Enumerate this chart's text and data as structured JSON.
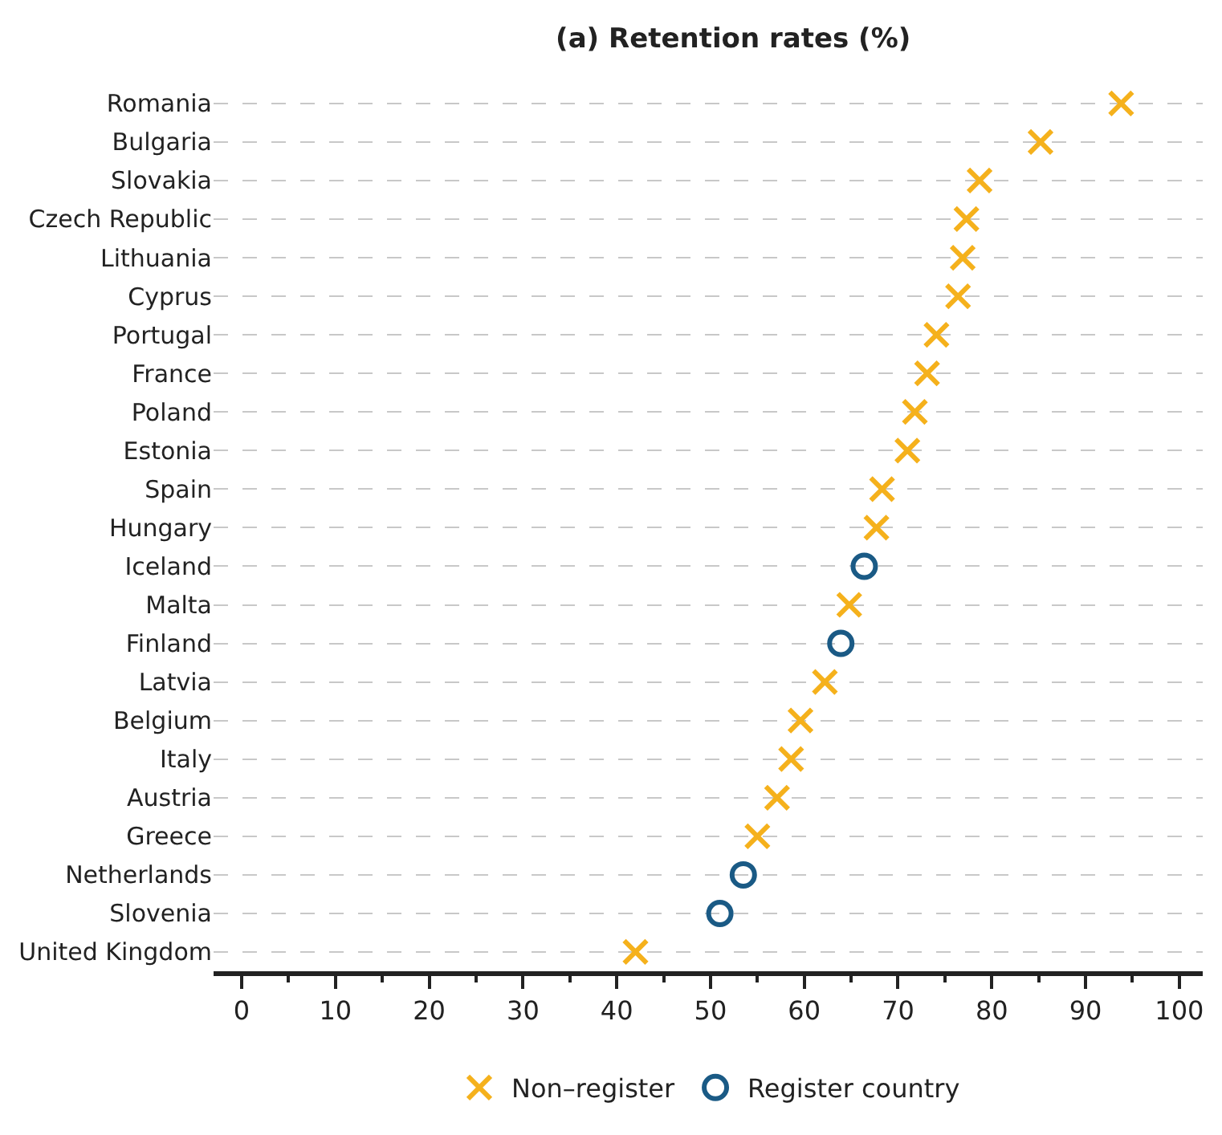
{
  "chart_data": {
    "type": "scatter",
    "orientation": "horizontal",
    "title": "(a) Retention rates (%)",
    "categories": [
      "Romania",
      "Bulgaria",
      "Slovakia",
      "Czech Republic",
      "Lithuania",
      "Cyprus",
      "Portugal",
      "France",
      "Poland",
      "Estonia",
      "Spain",
      "Hungary",
      "Iceland",
      "Malta",
      "Finland",
      "Latvia",
      "Belgium",
      "Italy",
      "Austria",
      "Greece",
      "Netherlands",
      "Slovenia",
      "United Kingdom"
    ],
    "series": [
      {
        "name": "Non–register",
        "color": "#f5b11c",
        "marker": "cross",
        "values": [
          93.8,
          85.2,
          78.7,
          77.3,
          76.9,
          76.4,
          74.1,
          73.1,
          71.8,
          71.0,
          68.3,
          67.7,
          null,
          64.8,
          null,
          62.2,
          59.6,
          58.6,
          57.1,
          55.0,
          null,
          null,
          42.0
        ]
      },
      {
        "name": "Register country",
        "color": "#1a5a85",
        "marker": "circle",
        "values": [
          null,
          null,
          null,
          null,
          null,
          null,
          null,
          null,
          null,
          null,
          null,
          null,
          66.4,
          null,
          63.9,
          null,
          null,
          null,
          null,
          null,
          53.5,
          51.0,
          null
        ]
      }
    ],
    "xlim": [
      -3,
      102.5
    ],
    "xticks": [
      0,
      {
        "value": 5,
        "label": null
      },
      10,
      {
        "value": 15,
        "label": null
      },
      20,
      {
        "value": 25,
        "label": null
      },
      30,
      {
        "value": 35,
        "label": null
      },
      40,
      {
        "value": 45,
        "label": null
      },
      50,
      {
        "value": 55,
        "label": null
      },
      60,
      {
        "value": 65,
        "label": null
      },
      70,
      {
        "value": 75,
        "label": null
      },
      80,
      {
        "value": 85,
        "label": null
      },
      90,
      {
        "value": 95,
        "label": null
      },
      100
    ],
    "grid": "y",
    "line_style": "dashed",
    "legend": "bottom"
  }
}
